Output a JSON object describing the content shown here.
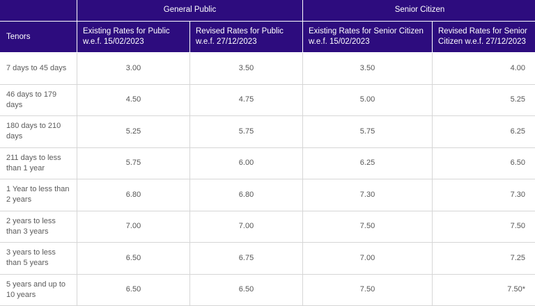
{
  "header": {
    "tenors_label": "Tenors",
    "group_general": "General Public",
    "group_senior": "Senior Citizen",
    "col_existing_public": "Existing Rates for Public w.e.f. 15/02/2023",
    "col_revised_public": "Revised Rates for Public w.e.f. 27/12/2023",
    "col_existing_senior": "Existing Rates for Senior Citizen w.e.f. 15/02/2023",
    "col_revised_senior": "Revised Rates for Senior Citizen w.e.f. 27/12/2023"
  },
  "rows": [
    {
      "tenor": "7 days to 45 days",
      "ep": "3.00",
      "rp": "3.50",
      "es": "3.50",
      "rs": "4.00"
    },
    {
      "tenor": "46 days to 179 days",
      "ep": "4.50",
      "rp": "4.75",
      "es": "5.00",
      "rs": "5.25"
    },
    {
      "tenor": "180 days to 210 days",
      "ep": "5.25",
      "rp": "5.75",
      "es": "5.75",
      "rs": "6.25"
    },
    {
      "tenor": "211 days to less than 1 year",
      "ep": "5.75",
      "rp": "6.00",
      "es": "6.25",
      "rs": "6.50"
    },
    {
      "tenor": "1 Year to less than 2 years",
      "ep": "6.80",
      "rp": "6.80",
      "es": "7.30",
      "rs": "7.30"
    },
    {
      "tenor": "2 years to less than 3 years",
      "ep": "7.00",
      "rp": "7.00",
      "es": "7.50",
      "rs": "7.50"
    },
    {
      "tenor": "3 years to less than 5 years",
      "ep": "6.50",
      "rp": "6.75",
      "es": "7.00",
      "rs": "7.25"
    },
    {
      "tenor": "5 years and up to 10 years",
      "ep": "6.50",
      "rp": "6.50",
      "es": "7.50",
      "rs": "7.50*"
    }
  ]
}
